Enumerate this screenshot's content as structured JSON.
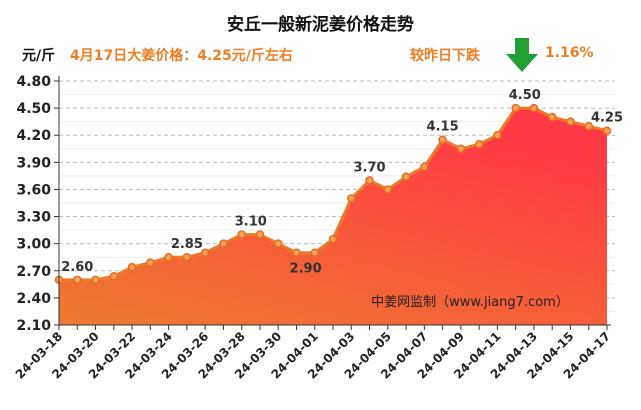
{
  "header": {
    "title": "安丘一般新泥姜价格走势",
    "unit": "元/斤",
    "price_text": "4月17日大姜价格：4.25元/斤左右",
    "change_label": "较昨日下跌",
    "change_pct": "1.16%",
    "arrow_icon": "down-arrow-icon",
    "arrow_color": "#22a033"
  },
  "chart_data": {
    "type": "area",
    "title": "安丘一般新泥姜价格走势",
    "ylabel": "元/斤",
    "ylim": [
      2.1,
      4.8
    ],
    "yticks": [
      "2.10",
      "2.40",
      "2.70",
      "3.00",
      "3.30",
      "3.60",
      "3.90",
      "4.20",
      "4.50",
      "4.80"
    ],
    "xticks": [
      "24-03-18",
      "24-03-20",
      "24-03-22",
      "24-03-24",
      "24-03-26",
      "24-03-28",
      "24-03-30",
      "24-04-01",
      "24-04-03",
      "24-04-05",
      "24-04-07",
      "24-04-09",
      "24-04-11",
      "24-04-13",
      "24-04-15",
      "24-04-17"
    ],
    "values": [
      2.6,
      2.6,
      2.6,
      2.64,
      2.74,
      2.79,
      2.85,
      2.85,
      2.9,
      3.0,
      3.1,
      3.1,
      3.0,
      2.9,
      2.9,
      3.05,
      3.5,
      3.7,
      3.6,
      3.74,
      3.85,
      4.15,
      4.05,
      4.1,
      4.2,
      4.5,
      4.5,
      4.4,
      4.35,
      4.3,
      4.25
    ],
    "annotations": [
      {
        "index": 1,
        "text": "2.60",
        "pos": "above"
      },
      {
        "index": 7,
        "text": "2.85",
        "pos": "above"
      },
      {
        "index": 10.5,
        "text": "3.10",
        "pos": "above"
      },
      {
        "index": 13.5,
        "text": "2.90",
        "pos": "below"
      },
      {
        "index": 17,
        "text": "3.70",
        "pos": "above"
      },
      {
        "index": 21,
        "text": "4.15",
        "pos": "above"
      },
      {
        "index": 25.5,
        "text": "4.50",
        "pos": "above"
      },
      {
        "index": 30,
        "text": "4.25",
        "pos": "above"
      }
    ],
    "watermark": "中姜网监制（www.jiang7.com）",
    "grid": true,
    "line_color": "#ec7a2a"
  }
}
